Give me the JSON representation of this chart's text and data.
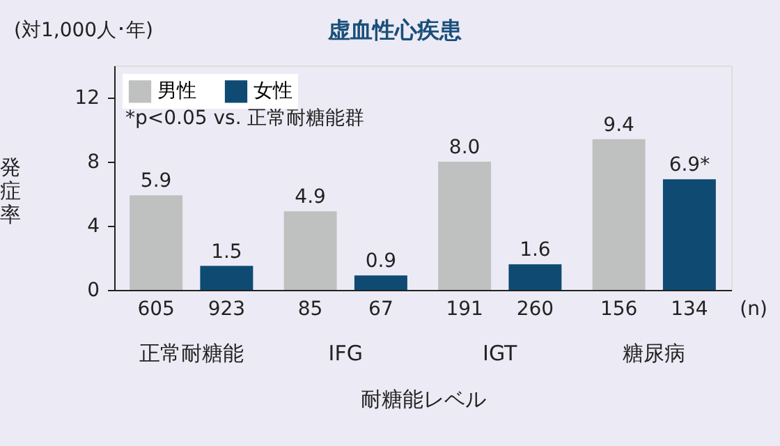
{
  "chart_data": {
    "type": "bar",
    "title": "虚血性心疾患",
    "xlabel": "耐糖能レベル",
    "ylabel": "発症率",
    "categories": [
      "正常耐糖能",
      "IFG",
      "IGT",
      "糖尿病"
    ],
    "series": [
      {
        "name": "男性",
        "color": "#bfc0c0",
        "values": [
          5.9,
          4.9,
          8.0,
          9.4
        ],
        "value_labels": [
          "5.9",
          "4.9",
          "8.0",
          "9.4"
        ]
      },
      {
        "name": "女性",
        "color": "#0f4a72",
        "values": [
          1.5,
          0.9,
          1.6,
          6.9
        ],
        "value_labels": [
          "1.5",
          "0.9",
          "1.6",
          "6.9*"
        ]
      }
    ],
    "annotations": [
      "(対1,000人･年)",
      "*p<0.05 vs. 正常耐糖能群",
      "605",
      "923",
      "85",
      "67",
      "191",
      "260",
      "156",
      "134",
      "(n)"
    ],
    "ylim": [
      0,
      14
    ],
    "yticks": [
      0,
      4,
      8,
      12
    ],
    "grid": false,
    "legend": "top left"
  }
}
